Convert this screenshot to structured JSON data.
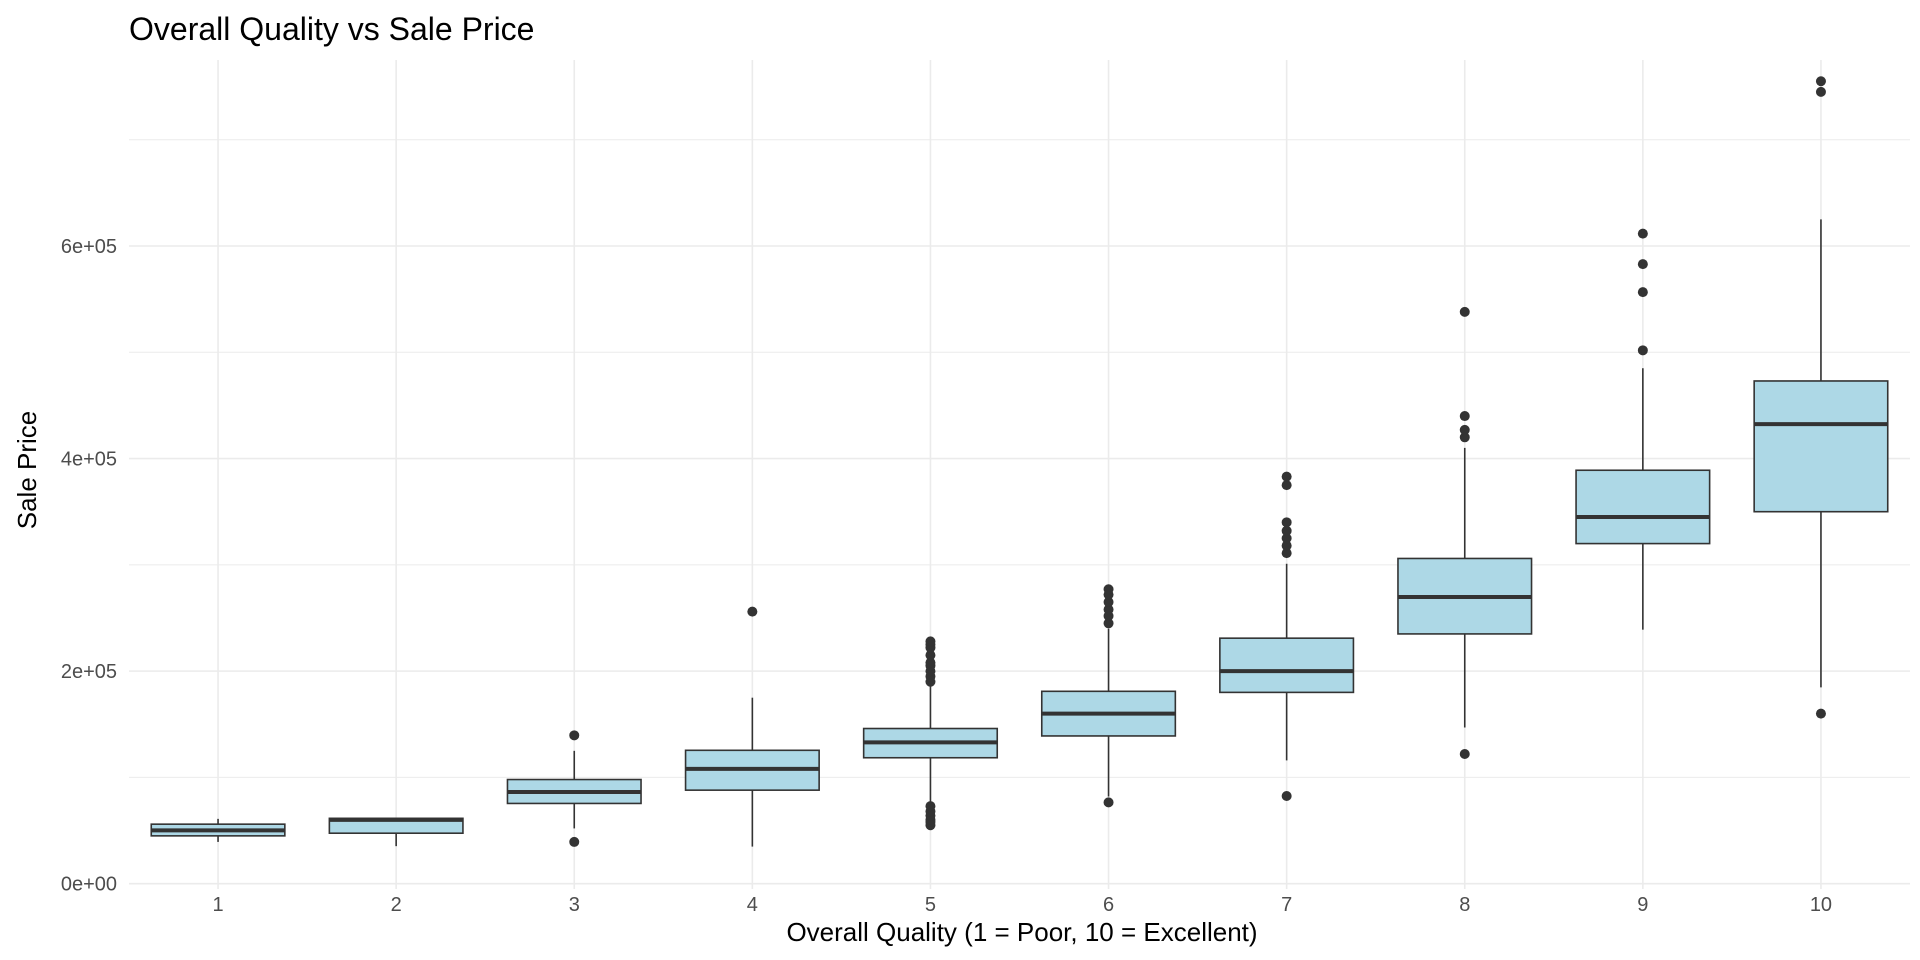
{
  "chart_data": {
    "type": "boxplot",
    "title": "Overall Quality vs Sale Price",
    "xlabel": "Overall Quality (1 = Poor, 10 = Excellent)",
    "ylabel": "Sale Price",
    "categories": [
      "1",
      "2",
      "3",
      "4",
      "5",
      "6",
      "7",
      "8",
      "9",
      "10"
    ],
    "ylim": [
      -5000,
      775000
    ],
    "y_ticks": [
      0,
      200000,
      400000,
      600000
    ],
    "y_tick_labels": [
      "0e+00",
      "2e+05",
      "4e+05",
      "6e+05"
    ],
    "grid": true,
    "box_fill": "#add8e6",
    "line_color": "#333333",
    "grid_color": "#ebebeb",
    "boxes": [
      {
        "category": "1",
        "min": 39300,
        "q1": 45000,
        "median": 50150,
        "q3": 56000,
        "max": 61000,
        "outliers": []
      },
      {
        "category": "2",
        "min": 35311,
        "q1": 47500,
        "median": 60000,
        "q3": 61500,
        "max": 61500,
        "outliers": []
      },
      {
        "category": "3",
        "min": 52000,
        "q1": 75500,
        "median": 86250,
        "q3": 98000,
        "max": 125000,
        "outliers": [
          39300,
          139600
        ]
      },
      {
        "category": "4",
        "min": 34900,
        "q1": 88000,
        "median": 108000,
        "q3": 125500,
        "max": 175000,
        "outliers": [
          256000
        ]
      },
      {
        "category": "5",
        "min": 76000,
        "q1": 118500,
        "median": 133000,
        "q3": 146000,
        "max": 188000,
        "outliers": [
          55000,
          58000,
          60000,
          64000,
          68000,
          73000,
          190000,
          195000,
          200000,
          205000,
          208000,
          215000,
          222000,
          225000,
          228000
        ]
      },
      {
        "category": "6",
        "min": 82000,
        "q1": 139000,
        "median": 160000,
        "q3": 181000,
        "max": 240000,
        "outliers": [
          76500,
          245000,
          252000,
          258000,
          265000,
          272000,
          277000
        ]
      },
      {
        "category": "7",
        "min": 116000,
        "q1": 180000,
        "median": 200000,
        "q3": 231000,
        "max": 301000,
        "outliers": [
          82500,
          311000,
          318000,
          325000,
          332000,
          340000,
          375000,
          383000
        ]
      },
      {
        "category": "8",
        "min": 147000,
        "q1": 235000,
        "median": 269750,
        "q3": 306000,
        "max": 410000,
        "outliers": [
          122000,
          420000,
          427000,
          440000,
          538000
        ]
      },
      {
        "category": "9",
        "min": 239000,
        "q1": 320000,
        "median": 345000,
        "q3": 389000,
        "max": 485000,
        "outliers": [
          501837,
          556581,
          582933,
          611657
        ]
      },
      {
        "category": "10",
        "min": 184750,
        "q1": 350000,
        "median": 432390,
        "q3": 473000,
        "max": 625000,
        "outliers": [
          160000,
          745000,
          755000
        ]
      }
    ]
  }
}
